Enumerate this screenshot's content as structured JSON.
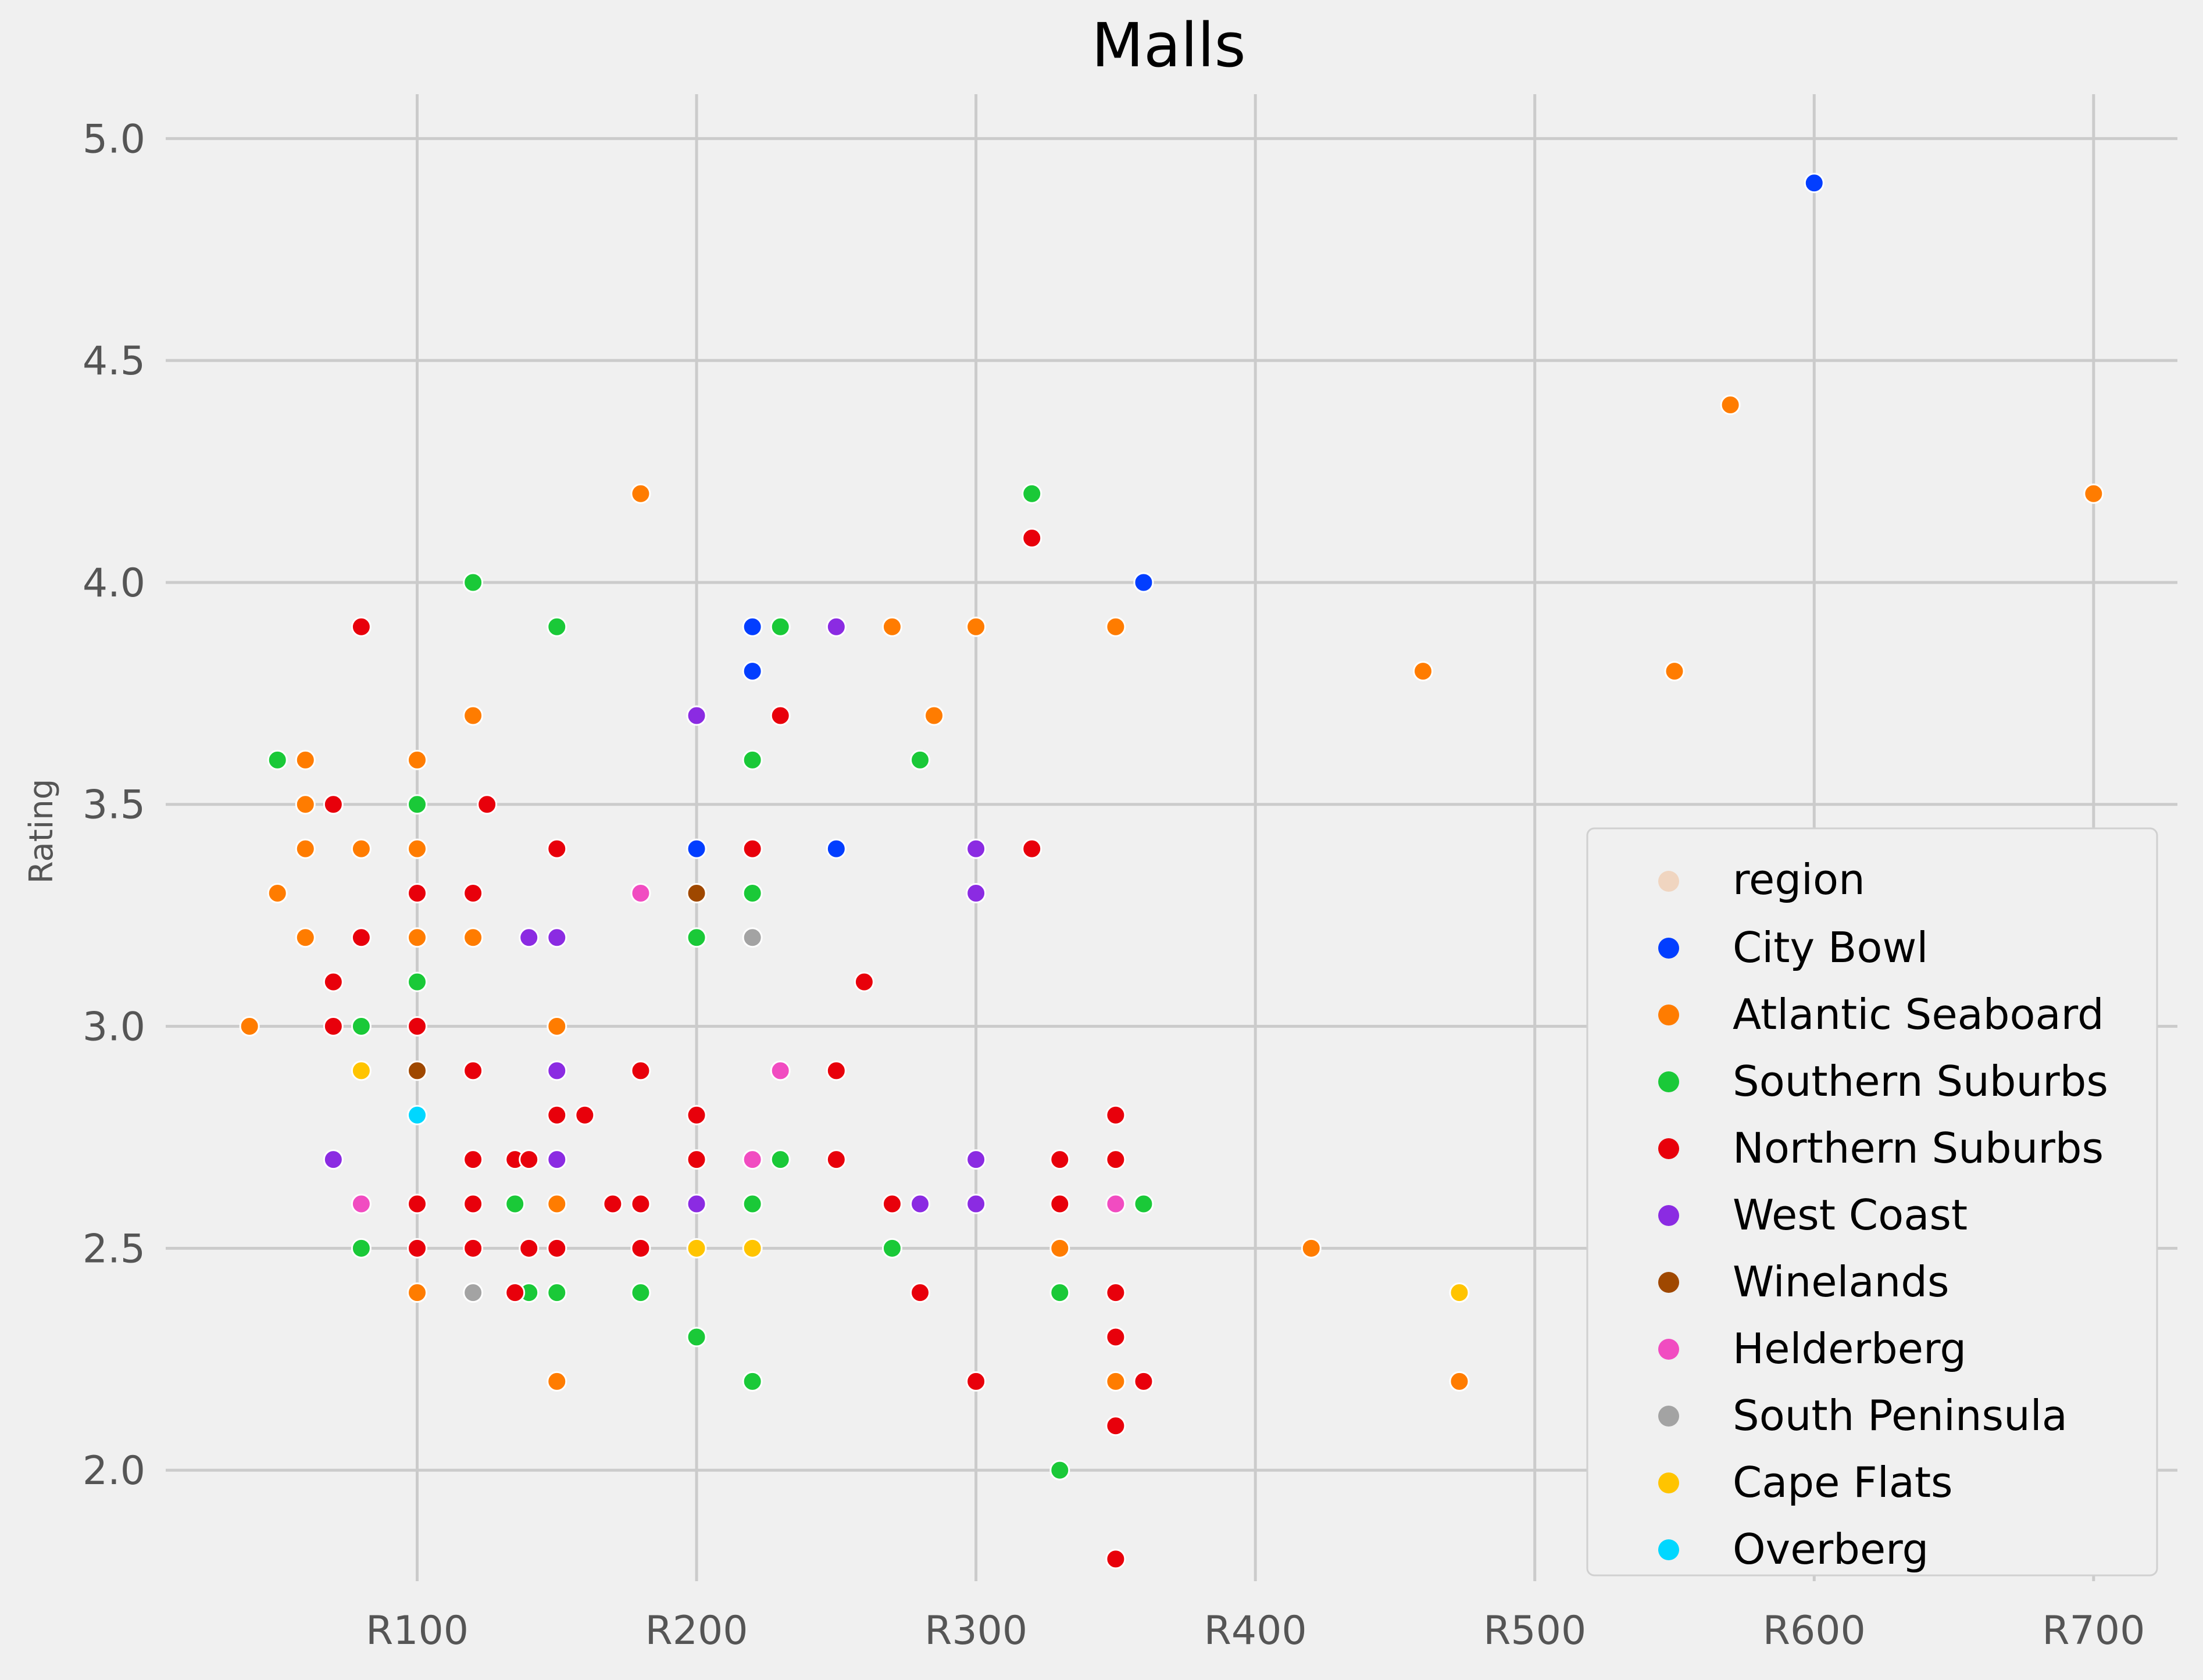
{
  "chart_data": {
    "type": "scatter",
    "title": "Malls",
    "xlabel": "",
    "ylabel": "Rating",
    "xlim": [
      10,
      730
    ],
    "ylim": [
      1.75,
      5.1
    ],
    "x_ticks": [
      100,
      200,
      300,
      400,
      500,
      600,
      700
    ],
    "x_tick_labels": [
      "R100",
      "R200",
      "R300",
      "R400",
      "R500",
      "R600",
      "R700"
    ],
    "y_ticks": [
      2.0,
      2.5,
      3.0,
      3.5,
      4.0,
      4.5,
      5.0
    ],
    "y_tick_labels": [
      "2.0",
      "2.5",
      "3.0",
      "3.5",
      "4.0",
      "4.5",
      "5.0"
    ],
    "grid": true,
    "legend": {
      "position": "bottom-right",
      "title": "region",
      "title_color": "#f0d5c0"
    },
    "series": [
      {
        "name": "City Bowl",
        "color": "#023eff",
        "points": [
          [
            600,
            4.9
          ],
          [
            360,
            4.0
          ],
          [
            220,
            3.9
          ],
          [
            220,
            3.8
          ],
          [
            200,
            3.4
          ],
          [
            250,
            3.4
          ]
        ]
      },
      {
        "name": "Atlantic Seaboard",
        "color": "#ff7c00",
        "points": [
          [
            570,
            4.4
          ],
          [
            700,
            4.2
          ],
          [
            180,
            4.2
          ],
          [
            270,
            3.9
          ],
          [
            300,
            3.9
          ],
          [
            350,
            3.9
          ],
          [
            460,
            3.8
          ],
          [
            550,
            3.8
          ],
          [
            120,
            3.7
          ],
          [
            285,
            3.7
          ],
          [
            60,
            3.6
          ],
          [
            100,
            3.6
          ],
          [
            60,
            3.5
          ],
          [
            60,
            3.4
          ],
          [
            80,
            3.4
          ],
          [
            100,
            3.4
          ],
          [
            50,
            3.3
          ],
          [
            60,
            3.2
          ],
          [
            100,
            3.2
          ],
          [
            120,
            3.2
          ],
          [
            600,
            3.2
          ],
          [
            40,
            3.0
          ],
          [
            150,
            3.0
          ],
          [
            150,
            2.6
          ],
          [
            330,
            2.5
          ],
          [
            420,
            2.5
          ],
          [
            100,
            2.4
          ],
          [
            150,
            2.2
          ],
          [
            350,
            2.2
          ],
          [
            473,
            2.2
          ]
        ]
      },
      {
        "name": "Southern Suburbs",
        "color": "#1ac938",
        "points": [
          [
            320,
            4.2
          ],
          [
            120,
            4.0
          ],
          [
            150,
            3.9
          ],
          [
            230,
            3.9
          ],
          [
            50,
            3.6
          ],
          [
            220,
            3.6
          ],
          [
            280,
            3.6
          ],
          [
            100,
            3.5
          ],
          [
            220,
            3.3
          ],
          [
            200,
            3.2
          ],
          [
            100,
            3.1
          ],
          [
            80,
            3.0
          ],
          [
            135,
            2.6
          ],
          [
            220,
            2.6
          ],
          [
            360,
            2.6
          ],
          [
            230,
            2.7
          ],
          [
            80,
            2.5
          ],
          [
            270,
            2.5
          ],
          [
            140,
            2.4
          ],
          [
            150,
            2.4
          ],
          [
            180,
            2.4
          ],
          [
            330,
            2.4
          ],
          [
            200,
            2.3
          ],
          [
            220,
            2.2
          ],
          [
            330,
            2.0
          ]
        ]
      },
      {
        "name": "Northern Suburbs",
        "color": "#e8000b",
        "points": [
          [
            320,
            4.1
          ],
          [
            80,
            3.9
          ],
          [
            230,
            3.7
          ],
          [
            70,
            3.5
          ],
          [
            125,
            3.5
          ],
          [
            150,
            3.4
          ],
          [
            220,
            3.4
          ],
          [
            320,
            3.4
          ],
          [
            100,
            3.3
          ],
          [
            120,
            3.3
          ],
          [
            80,
            3.2
          ],
          [
            70,
            3.1
          ],
          [
            260,
            3.1
          ],
          [
            70,
            3.0
          ],
          [
            100,
            3.0
          ],
          [
            120,
            2.9
          ],
          [
            180,
            2.9
          ],
          [
            250,
            2.9
          ],
          [
            150,
            2.8
          ],
          [
            160,
            2.8
          ],
          [
            200,
            2.8
          ],
          [
            350,
            2.8
          ],
          [
            120,
            2.7
          ],
          [
            135,
            2.7
          ],
          [
            140,
            2.7
          ],
          [
            200,
            2.7
          ],
          [
            250,
            2.7
          ],
          [
            330,
            2.7
          ],
          [
            350,
            2.7
          ],
          [
            100,
            2.6
          ],
          [
            120,
            2.6
          ],
          [
            170,
            2.6
          ],
          [
            180,
            2.6
          ],
          [
            270,
            2.6
          ],
          [
            330,
            2.6
          ],
          [
            100,
            2.5
          ],
          [
            120,
            2.5
          ],
          [
            140,
            2.5
          ],
          [
            150,
            2.5
          ],
          [
            180,
            2.5
          ],
          [
            135,
            2.4
          ],
          [
            280,
            2.4
          ],
          [
            350,
            2.4
          ],
          [
            350,
            2.3
          ],
          [
            300,
            2.2
          ],
          [
            360,
            2.2
          ],
          [
            350,
            2.1
          ],
          [
            350,
            1.8
          ]
        ]
      },
      {
        "name": "West Coast",
        "color": "#8b2be2",
        "points": [
          [
            250,
            3.9
          ],
          [
            200,
            3.7
          ],
          [
            300,
            3.4
          ],
          [
            300,
            3.3
          ],
          [
            140,
            3.2
          ],
          [
            150,
            3.2
          ],
          [
            150,
            2.9
          ],
          [
            70,
            2.7
          ],
          [
            150,
            2.7
          ],
          [
            300,
            2.7
          ],
          [
            200,
            2.6
          ],
          [
            280,
            2.6
          ],
          [
            300,
            2.6
          ]
        ]
      },
      {
        "name": "Winelands",
        "color": "#9f4800",
        "points": [
          [
            200,
            3.3
          ],
          [
            100,
            2.9
          ]
        ]
      },
      {
        "name": "Helderberg",
        "color": "#f14cc1",
        "points": [
          [
            180,
            3.3
          ],
          [
            230,
            2.9
          ],
          [
            220,
            2.7
          ],
          [
            80,
            2.6
          ],
          [
            350,
            2.6
          ]
        ]
      },
      {
        "name": "South Peninsula",
        "color": "#a3a3a3",
        "points": [
          [
            220,
            3.2
          ],
          [
            120,
            2.4
          ]
        ]
      },
      {
        "name": "Cape Flats",
        "color": "#ffc400",
        "points": [
          [
            80,
            2.9
          ],
          [
            200,
            2.5
          ],
          [
            220,
            2.5
          ],
          [
            473,
            2.4
          ]
        ]
      },
      {
        "name": "Overberg",
        "color": "#00d7ff",
        "points": [
          [
            100,
            2.8
          ]
        ]
      }
    ]
  }
}
